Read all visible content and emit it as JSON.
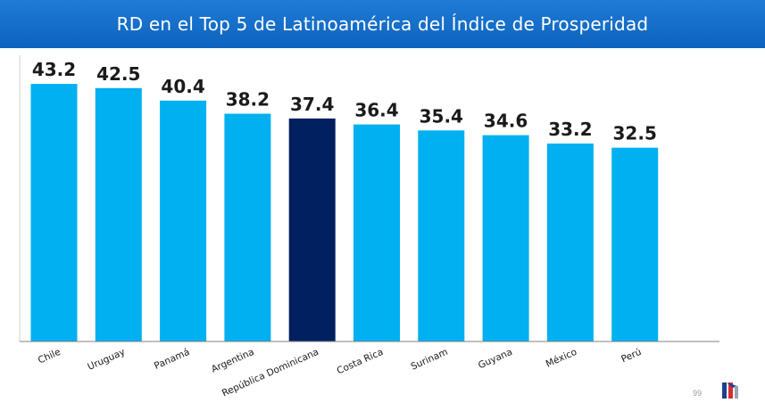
{
  "header": {
    "title": "RD en el Top 5 de Latinoamérica del Índice de Prosperidad"
  },
  "footer": {
    "page_number": "99"
  },
  "colors": {
    "header_bg": "#0f68c4",
    "bar_default": "#00b0f0",
    "bar_highlight": "#002060",
    "axis": "#808080"
  },
  "chart_data": {
    "type": "bar",
    "title": "RD en el Top 5 de Latinoamérica del Índice de Prosperidad",
    "categories": [
      "Chile",
      "Uruguay",
      "Panamá",
      "Argentina",
      "República Dominicana",
      "Costa Rica",
      "Surinam",
      "Guyana",
      "México",
      "Perú"
    ],
    "values": [
      43.2,
      42.5,
      40.4,
      38.2,
      37.4,
      36.4,
      35.4,
      34.6,
      33.2,
      32.5
    ],
    "value_labels": [
      "43.2",
      "42.5",
      "40.4",
      "38.2",
      "37.4",
      "36.4",
      "35.4",
      "34.6",
      "33.2",
      "32.5"
    ],
    "highlight": "República Dominicana",
    "xlabel": "",
    "ylabel": "",
    "ylim": [
      0,
      48
    ],
    "grid": false,
    "legend": "none"
  }
}
